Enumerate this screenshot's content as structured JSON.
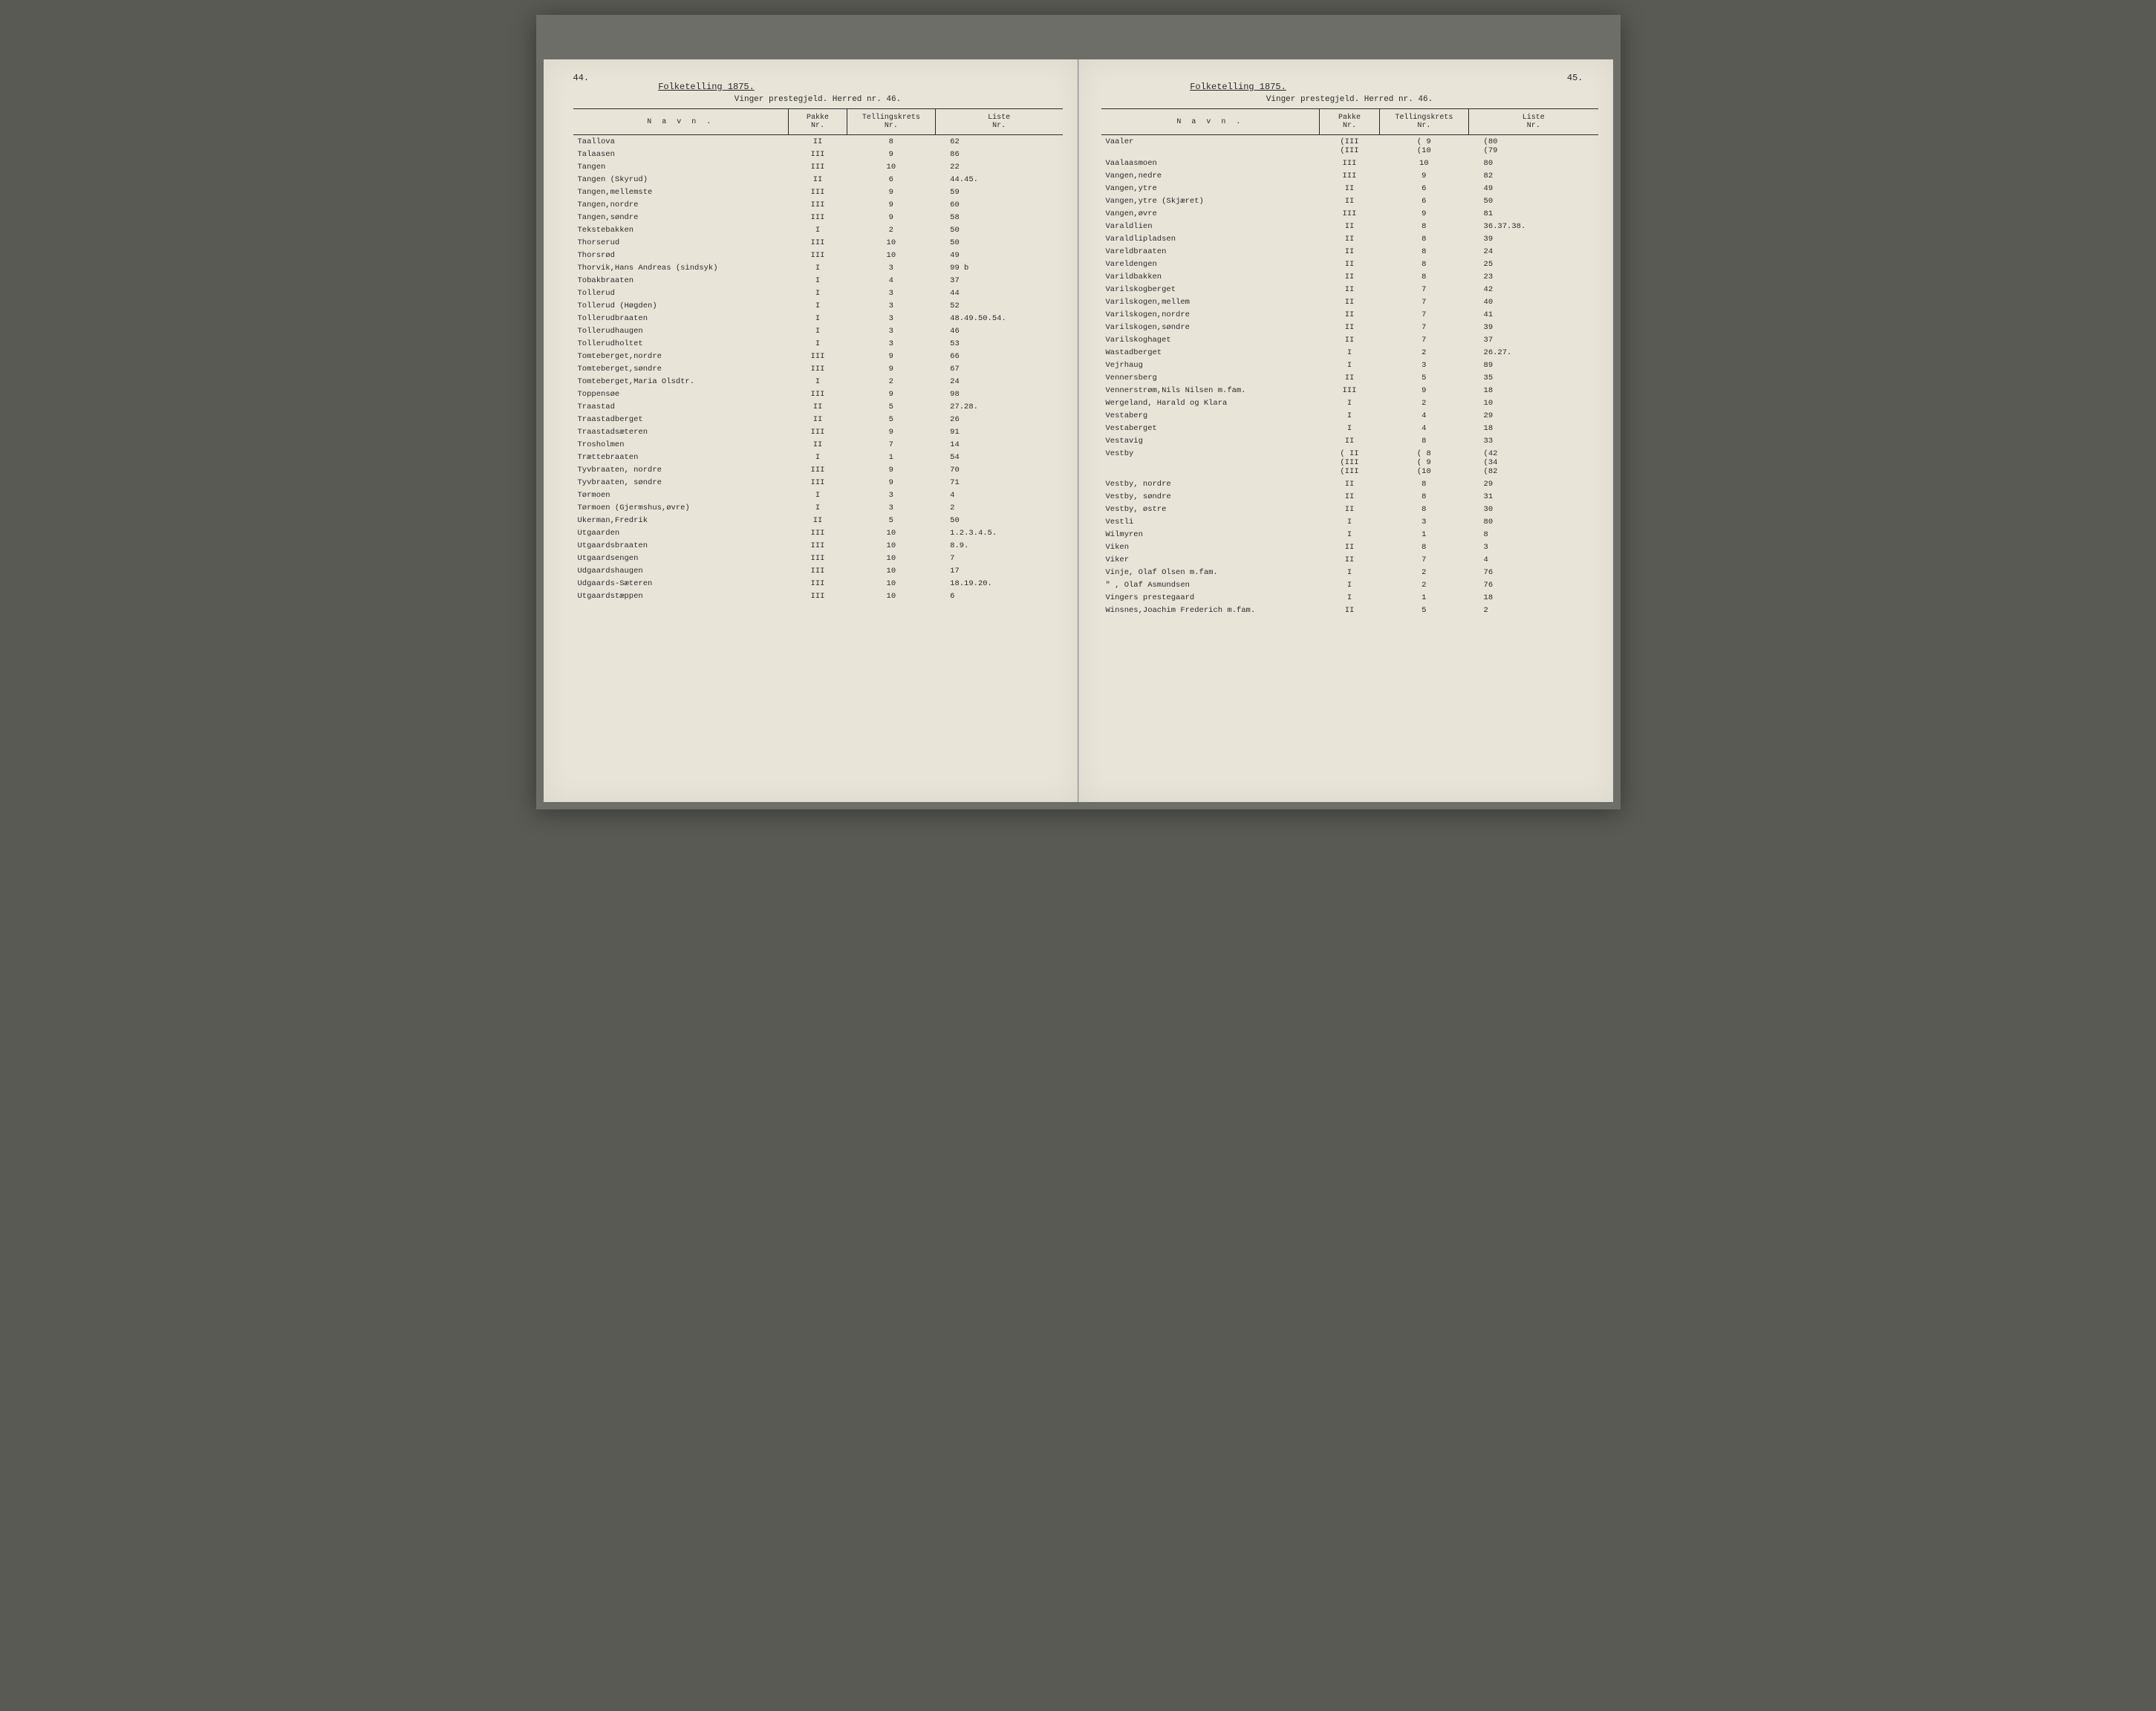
{
  "meta": {
    "census_title": "Folketelling 1875.",
    "subheader_prefix": "Vinger prestegjeld. Herred nr.",
    "herred_nr_left": "46.",
    "herred_nr_right": "46.",
    "page_left": "44.",
    "page_right": "45.",
    "headers": {
      "name": "N a v n .",
      "pakke": "Pakke\nNr.",
      "tell": "Tellingskrets\nNr.",
      "liste": "Liste\nNr."
    },
    "colors": {
      "outer_bg": "#5a5a54",
      "book_bg": "#6e6e68",
      "paper": "#e8e4d8",
      "ink": "#2a2a2a"
    }
  },
  "left_rows": [
    {
      "n": "Taallova",
      "p": "II",
      "t": "8",
      "l": "62"
    },
    {
      "n": "Talaasen",
      "p": "III",
      "t": "9",
      "l": "86"
    },
    {
      "n": "Tangen",
      "p": "III",
      "t": "10",
      "l": "22"
    },
    {
      "n": "Tangen (Skyrud)",
      "p": "II",
      "t": "6",
      "l": "44.45."
    },
    {
      "n": "Tangen,mellemste",
      "p": "III",
      "t": "9",
      "l": "59"
    },
    {
      "n": "Tangen,nordre",
      "p": "III",
      "t": "9",
      "l": "60"
    },
    {
      "n": "Tangen,søndre",
      "p": "III",
      "t": "9",
      "l": "58"
    },
    {
      "n": "Tekstebakken",
      "p": "I",
      "t": "2",
      "l": "50"
    },
    {
      "n": "Thorserud",
      "p": "III",
      "t": "10",
      "l": "50"
    },
    {
      "n": "Thorsrød",
      "p": "III",
      "t": "10",
      "l": "49"
    },
    {
      "n": "Thorvik,Hans Andreas (sindsyk)",
      "p": "I",
      "t": "3",
      "l": "99 b"
    },
    {
      "n": "Tobakbraaten",
      "p": "I",
      "t": "4",
      "l": "37"
    },
    {
      "n": "Tollerud",
      "p": "I",
      "t": "3",
      "l": "44"
    },
    {
      "n": "Tollerud (Høgden)",
      "p": "I",
      "t": "3",
      "l": "52"
    },
    {
      "n": "Tollerudbraaten",
      "p": "I",
      "t": "3",
      "l": "48.49.50.54."
    },
    {
      "n": "Tollerudhaugen",
      "p": "I",
      "t": "3",
      "l": "46"
    },
    {
      "n": "Tollerudholtet",
      "p": "I",
      "t": "3",
      "l": "53"
    },
    {
      "n": "Tomteberget,nordre",
      "p": "III",
      "t": "9",
      "l": "66"
    },
    {
      "n": "Tomteberget,søndre",
      "p": "III",
      "t": "9",
      "l": "67"
    },
    {
      "n": "Tomteberget,Maria Olsdtr.",
      "p": "I",
      "t": "2",
      "l": "24"
    },
    {
      "n": "Toppensøe",
      "p": "III",
      "t": "9",
      "l": "98"
    },
    {
      "n": "Traastad",
      "p": "II",
      "t": "5",
      "l": "27.28."
    },
    {
      "n": "Traastadberget",
      "p": "II",
      "t": "5",
      "l": "26"
    },
    {
      "n": "Traastadsæteren",
      "p": "III",
      "t": "9",
      "l": "91"
    },
    {
      "n": "Trosholmen",
      "p": "II",
      "t": "7",
      "l": "14"
    },
    {
      "n": "Trættebraaten",
      "p": "I",
      "t": "1",
      "l": "54"
    },
    {
      "n": "Tyvbraaten, nordre",
      "p": "III",
      "t": "9",
      "l": "70"
    },
    {
      "n": "Tyvbraaten, søndre",
      "p": "III",
      "t": "9",
      "l": "71"
    },
    {
      "n": "Tørmoen",
      "p": "I",
      "t": "3",
      "l": "4"
    },
    {
      "n": "Tørmoen (Gjermshus,øvre)",
      "p": "I",
      "t": "3",
      "l": "2"
    },
    {
      "n": "Ukerman,Fredrik",
      "p": "II",
      "t": "5",
      "l": "50",
      "gap": true
    },
    {
      "n": "Utgaarden",
      "p": "III",
      "t": "10",
      "l": "1.2.3.4.5."
    },
    {
      "n": "Utgaardsbraaten",
      "p": "III",
      "t": "10",
      "l": "8.9."
    },
    {
      "n": "Utgaardsengen",
      "p": "III",
      "t": "10",
      "l": "7"
    },
    {
      "n": "Udgaardshaugen",
      "p": "III",
      "t": "10",
      "l": "17"
    },
    {
      "n": "Udgaards-Sæteren",
      "p": "III",
      "t": "10",
      "l": "18.19.20."
    },
    {
      "n": "Utgaardstæppen",
      "p": "III",
      "t": "10",
      "l": "6"
    }
  ],
  "right_rows": [
    {
      "n": "Vaaler",
      "p": "(III\n(III",
      "t": "( 9\n(10",
      "l": "(80\n(79",
      "multi": true
    },
    {
      "n": "Vaalaasmoen",
      "p": "III",
      "t": "10",
      "l": "80"
    },
    {
      "n": "Vangen,nedre",
      "p": "III",
      "t": "9",
      "l": "82"
    },
    {
      "n": "Vangen,ytre",
      "p": "II",
      "t": "6",
      "l": "49"
    },
    {
      "n": "Vangen,ytre (Skjæret)",
      "p": "II",
      "t": "6",
      "l": "50"
    },
    {
      "n": "Vangen,øvre",
      "p": "III",
      "t": "9",
      "l": "81"
    },
    {
      "n": "Varaldlien",
      "p": "II",
      "t": "8",
      "l": "36.37.38."
    },
    {
      "n": "Varaldlipladsen",
      "p": "II",
      "t": "8",
      "l": "39"
    },
    {
      "n": "Vareldbraaten",
      "p": "II",
      "t": "8",
      "l": "24"
    },
    {
      "n": "Vareldengen",
      "p": "II",
      "t": "8",
      "l": "25"
    },
    {
      "n": "Varildbakken",
      "p": "II",
      "t": "8",
      "l": "23"
    },
    {
      "n": "Varilskogberget",
      "p": "II",
      "t": "7",
      "l": "42"
    },
    {
      "n": "Varilskogen,mellem",
      "p": "II",
      "t": "7",
      "l": "40"
    },
    {
      "n": "Varilskogen,nordre",
      "p": "II",
      "t": "7",
      "l": "41"
    },
    {
      "n": "Varilskogen,søndre",
      "p": "II",
      "t": "7",
      "l": "39"
    },
    {
      "n": "Varilskoghaget",
      "p": "II",
      "t": "7",
      "l": "37"
    },
    {
      "n": "Wastadberget",
      "p": "I",
      "t": "2",
      "l": "26.27."
    },
    {
      "n": "Vejrhaug",
      "p": "I",
      "t": "3",
      "l": "89"
    },
    {
      "n": "Vennersberg",
      "p": "II",
      "t": "5",
      "l": "35"
    },
    {
      "n": "Vennerstrøm,Nils Nilsen m.fam.",
      "p": "III",
      "t": "9",
      "l": "18"
    },
    {
      "n": "Wergeland, Harald og Klara",
      "p": "I",
      "t": "2",
      "l": "10"
    },
    {
      "n": "Vestaberg",
      "p": "I",
      "t": "4",
      "l": "29"
    },
    {
      "n": "Vestaberget",
      "p": "I",
      "t": "4",
      "l": "18"
    },
    {
      "n": "Vestavig",
      "p": "II",
      "t": "8",
      "l": "33"
    },
    {
      "n": "Vestby",
      "p": "( II\n(III\n(III",
      "t": "( 8\n( 9\n(10",
      "l": "(42\n(34\n(82",
      "multi": true
    },
    {
      "n": "Vestby, nordre",
      "p": "II",
      "t": "8",
      "l": "29"
    },
    {
      "n": "Vestby, søndre",
      "p": "II",
      "t": "8",
      "l": "31"
    },
    {
      "n": "Vestby, østre",
      "p": "II",
      "t": "8",
      "l": "30"
    },
    {
      "n": "Vestli",
      "p": "I",
      "t": "3",
      "l": "80"
    },
    {
      "n": "Wilmyren",
      "p": "I",
      "t": "1",
      "l": "8"
    },
    {
      "n": "Viken",
      "p": "II",
      "t": "8",
      "l": "3"
    },
    {
      "n": "Viker",
      "p": "II",
      "t": "7",
      "l": "4"
    },
    {
      "n": "Vinje, Olaf Olsen m.fam.",
      "p": "I",
      "t": "2",
      "l": "76"
    },
    {
      "n": "  \"  , Olaf Asmundsen",
      "p": "I",
      "t": "2",
      "l": "76"
    },
    {
      "n": "Vingers prestegaard",
      "p": "I",
      "t": "1",
      "l": "18"
    },
    {
      "n": "Winsnes,Joachim Frederich m.fam.",
      "p": "II",
      "t": "5",
      "l": "2"
    }
  ]
}
